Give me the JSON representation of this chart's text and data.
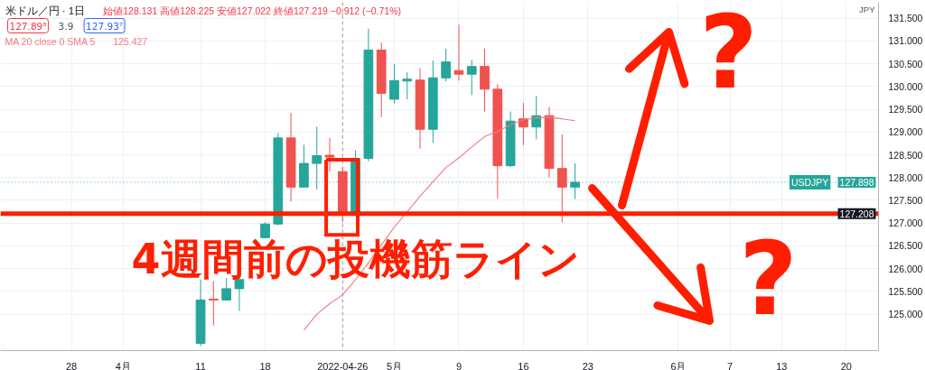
{
  "chart_data": {
    "type": "candlestick",
    "title": "米ドル／円 · 1日",
    "subtitle": "始値128.131 高値128.225 安値127.022 終値127.219 −0.912 (−0.71%)",
    "ylabel": "JPY",
    "annotations": [
      "127.89⁸",
      "3.9",
      "127.93⁷",
      "125.427",
      "4週間前の投機筋ライン",
      "?",
      "?",
      {
        "text": "127.898",
        "y": 127.898
      },
      {
        "text": "127.208",
        "y": 127.208
      }
    ],
    "categories": [
      null,
      null,
      null,
      null,
      null,
      "28",
      null,
      null,
      null,
      "4月",
      null,
      null,
      null,
      null,
      null,
      "11",
      null,
      null,
      null,
      null,
      "18",
      null,
      null,
      null,
      null,
      null,
      "2022-04-26",
      null,
      null,
      null,
      "5月",
      null,
      null,
      null,
      null,
      "9",
      null,
      null,
      null,
      null,
      "16",
      null,
      null,
      null,
      null,
      "23",
      null,
      null,
      null,
      null,
      null,
      null,
      "6月",
      null,
      null,
      null,
      "7",
      null,
      null,
      null,
      "13",
      null,
      null,
      null,
      null,
      "20",
      null,
      null
    ],
    "ylim": [
      124.2,
      131.85
    ],
    "yticks": [
      {
        "value": 125.0,
        "label": "125.000"
      },
      {
        "value": 125.5,
        "label": "125.500"
      },
      {
        "value": 126.0,
        "label": "126.000"
      },
      {
        "value": 126.5,
        "label": "126.500"
      },
      {
        "value": 127.0,
        "label": "127.000"
      },
      {
        "value": 127.5,
        "label": "127.500"
      },
      {
        "value": 128.0,
        "label": "128.000"
      },
      {
        "value": 128.5,
        "label": "128.500"
      },
      {
        "value": 129.0,
        "label": "129.000"
      },
      {
        "value": 129.5,
        "label": "129.500"
      },
      {
        "value": 130.0,
        "label": "130.000"
      },
      {
        "value": 130.5,
        "label": "130.500"
      },
      {
        "value": 131.0,
        "label": "131.000"
      },
      {
        "value": 131.5,
        "label": "131.500"
      }
    ],
    "grid": true,
    "legend": "top left",
    "ref_lines": [
      {
        "axis": "x",
        "value": "2022-04-26",
        "color": "#9598a1",
        "line_style": "dashed"
      },
      {
        "axis": "y",
        "value": 127.898,
        "label": "USDJPY",
        "color": "#26a69a",
        "line_style": "dotted"
      },
      {
        "axis": "y",
        "value": 127.208,
        "color": "#ff1e00",
        "line_style": "solid"
      }
    ],
    "series": [
      {
        "name": "MA 20 close 0 SMA 5",
        "type": "line",
        "color": "#f07a7e",
        "values": [
          null,
          null,
          null,
          null,
          null,
          null,
          null,
          null,
          null,
          null,
          null,
          null,
          null,
          null,
          null,
          null,
          null,
          null,
          null,
          null,
          null,
          null,
          null,
          124.65,
          125.0,
          125.23,
          125.427,
          125.76,
          126.13,
          126.52,
          126.91,
          127.25,
          127.59,
          127.91,
          128.22,
          128.43,
          128.67,
          128.9,
          129.01,
          129.16,
          129.27,
          129.31,
          129.32,
          129.29,
          129.25,
          null,
          null,
          null,
          null,
          null,
          null,
          null,
          null,
          null,
          null,
          null,
          null,
          null,
          null,
          null,
          null,
          null,
          null,
          null,
          null,
          null,
          null,
          null
        ]
      },
      {
        "ohlc": [
          null,
          null,
          null,
          null,
          null,
          null,
          null,
          null,
          null,
          null,
          null,
          null,
          null,
          null,
          null,
          [
            124.36,
            125.76,
            124.3,
            125.31
          ],
          [
            125.33,
            125.73,
            124.75,
            125.31
          ],
          [
            125.31,
            125.79,
            125.3,
            125.56
          ],
          [
            125.56,
            125.77,
            125.07,
            125.76
          ],
          null,
          [
            126.68,
            127.02,
            126.66,
            126.98
          ],
          [
            126.98,
            128.98,
            126.95,
            128.87
          ],
          [
            128.87,
            129.42,
            127.47,
            127.79
          ],
          [
            127.79,
            128.72,
            127.78,
            128.31
          ],
          [
            128.31,
            129.12,
            127.74,
            128.48
          ],
          [
            128.49,
            128.87,
            128.14,
            128.45
          ],
          [
            128.131,
            128.225,
            127.022,
            127.219
          ],
          [
            127.24,
            128.6,
            127.2,
            128.42
          ],
          [
            128.42,
            131.27,
            128.36,
            130.8
          ],
          [
            130.8,
            130.96,
            129.33,
            129.85
          ],
          [
            129.72,
            130.49,
            129.63,
            130.13
          ],
          [
            130.12,
            130.31,
            129.72,
            130.16
          ],
          [
            130.14,
            130.4,
            128.63,
            129.06
          ],
          [
            129.06,
            130.57,
            128.76,
            130.19
          ],
          [
            130.19,
            130.83,
            130.11,
            130.54
          ],
          [
            130.35,
            131.36,
            130.13,
            130.27
          ],
          [
            130.27,
            130.58,
            129.81,
            130.44
          ],
          [
            130.44,
            130.83,
            129.45,
            129.94
          ],
          [
            129.94,
            130.05,
            127.53,
            128.26
          ],
          [
            128.26,
            129.45,
            128.23,
            129.24
          ],
          [
            129.29,
            129.64,
            128.71,
            129.11
          ],
          [
            129.11,
            129.79,
            128.84,
            129.36
          ],
          [
            129.36,
            129.55,
            128.0,
            128.2
          ],
          [
            128.2,
            128.95,
            127.02,
            127.79
          ],
          [
            127.79,
            128.31,
            127.53,
            127.898
          ],
          null,
          null,
          null,
          null,
          null,
          null,
          null,
          null,
          null,
          null,
          null,
          null,
          null,
          null,
          null,
          null,
          null,
          null,
          null,
          null,
          null,
          null,
          null
        ],
        "colors": [
          null,
          null,
          null,
          null,
          null,
          null,
          null,
          null,
          null,
          null,
          null,
          null,
          null,
          null,
          null,
          "#26a69a",
          "#ef5350",
          "#26a69a",
          "#26a69a",
          null,
          "#26a69a",
          "#26a69a",
          "#ef5350",
          "#26a69a",
          "#26a69a",
          "#ef5350",
          "#ef5350",
          "#26a69a",
          "#26a69a",
          "#ef5350",
          "#26a69a",
          "#26a69a",
          "#ef5350",
          "#26a69a",
          "#26a69a",
          "#ef5350",
          "#26a69a",
          "#ef5350",
          "#ef5350",
          "#26a69a",
          "#ef5350",
          "#26a69a",
          "#ef5350",
          "#ef5350",
          "#26a69a",
          null,
          null,
          null,
          null,
          null,
          null,
          null,
          null,
          null,
          null,
          null,
          null,
          null,
          null,
          null,
          null,
          null,
          null,
          null,
          null,
          null,
          null,
          null
        ]
      }
    ]
  }
}
